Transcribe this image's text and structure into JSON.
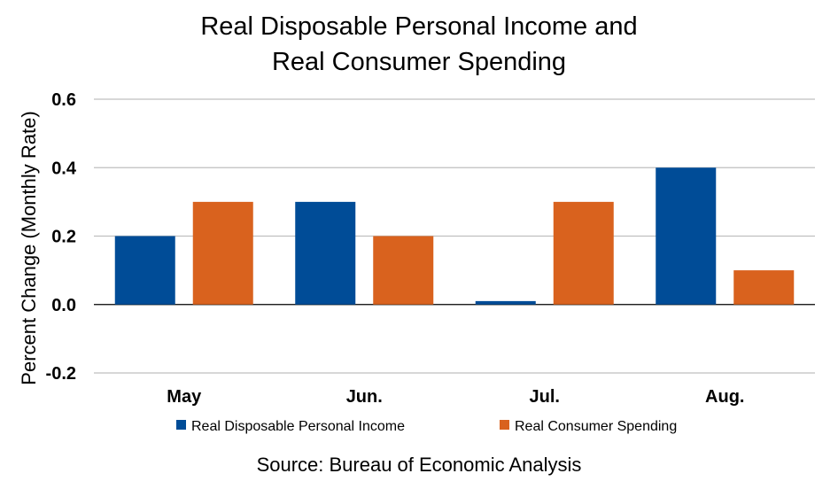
{
  "chart_data": {
    "type": "bar",
    "title_lines": [
      "Real Disposable Personal Income and",
      "Real Consumer Spending"
    ],
    "ylabel": "Percent Change (Monthly Rate)",
    "xlabel": "",
    "categories": [
      "May",
      "Jun.",
      "Jul.",
      "Aug."
    ],
    "series": [
      {
        "name": "Real Disposable Personal Income",
        "color": "#004C97",
        "values": [
          0.2,
          0.3,
          0.01,
          0.4
        ]
      },
      {
        "name": "Real Consumer Spending",
        "color": "#D9621E",
        "values": [
          0.3,
          0.2,
          0.3,
          0.1
        ]
      }
    ],
    "ylim": [
      -0.2,
      0.6
    ],
    "yticks": [
      "-0.2",
      "0.0",
      "0.2",
      "0.4",
      "0.6"
    ],
    "grid": true,
    "legend_position": "bottom",
    "source": "Source:  Bureau of Economic Analysis"
  }
}
